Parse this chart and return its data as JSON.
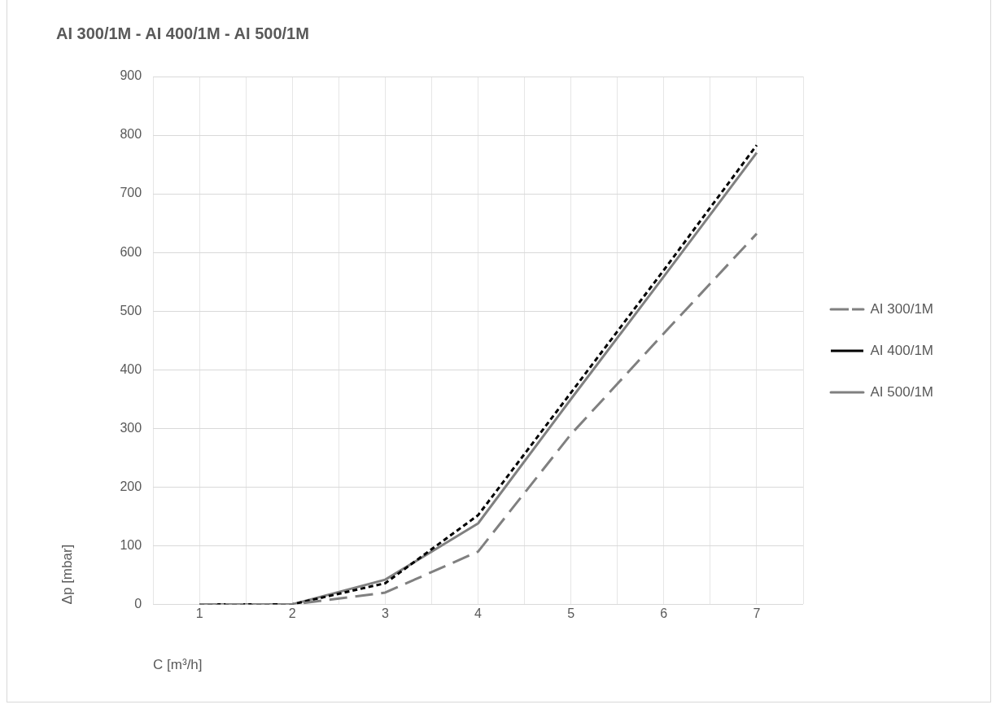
{
  "chart_data": {
    "type": "line",
    "title": "AI 300/1M - AI 400/1M - AI 500/1M",
    "xlabel": "C [m³/h]",
    "ylabel": "Δp [mbar]",
    "x": [
      1,
      2,
      3,
      4,
      5,
      6,
      7
    ],
    "xlim": [
      0.5,
      7.5
    ],
    "xticks": [
      {
        "value": 0.5,
        "label": null
      },
      1,
      {
        "value": 1.5,
        "label": null
      },
      2,
      {
        "value": 2.5,
        "label": null
      },
      3,
      {
        "value": 3.5,
        "label": null
      },
      4,
      {
        "value": 4.5,
        "label": null
      },
      5,
      {
        "value": 5.5,
        "label": null
      },
      6,
      {
        "value": 6.5,
        "label": null
      },
      7,
      {
        "value": 7.5,
        "label": null
      }
    ],
    "ylim": [
      0,
      900
    ],
    "yticks": [
      0,
      100,
      200,
      300,
      400,
      500,
      600,
      700,
      800,
      900
    ],
    "grid": true,
    "legend": "right",
    "marker": "none",
    "series": [
      {
        "name": "AI 300/1M",
        "color": "#808080",
        "line_style": "dashed",
        "values": [
          0,
          0,
          20,
          90,
          290,
          462,
          632
        ]
      },
      {
        "name": "AI 400/1M",
        "color": "#000000",
        "line_style": "dotted",
        "values": [
          0,
          0,
          36,
          152,
          361,
          570,
          783
        ]
      },
      {
        "name": "AI 500/1M",
        "color": "#808080",
        "line_style": "solid",
        "values": [
          0,
          0,
          42,
          138,
          350,
          559,
          770
        ]
      }
    ]
  }
}
